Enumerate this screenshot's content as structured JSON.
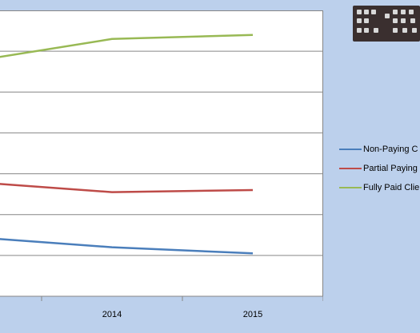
{
  "chart_data": {
    "type": "line",
    "categories": [
      "",
      "2014",
      "2015"
    ],
    "ylim": [
      0,
      7
    ],
    "grid": true,
    "legend_position": "right",
    "series": [
      {
        "name": "Non-Paying C",
        "color": "#4a7ebb",
        "values": [
          1.45,
          1.2,
          1.05
        ]
      },
      {
        "name": "Partial Paying",
        "color": "#be4b48",
        "values": [
          2.8,
          2.55,
          2.6
        ]
      },
      {
        "name": "Fully Paid Clie",
        "color": "#98b954",
        "values": [
          5.75,
          6.3,
          6.4
        ]
      }
    ]
  },
  "thumbnail": {
    "icon": "toolbar-thumbnail-image"
  }
}
